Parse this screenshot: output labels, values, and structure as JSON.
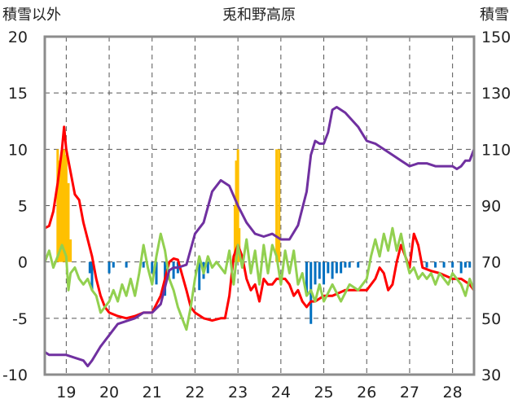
{
  "chart_data": {
    "type": "line",
    "title": "兎和野高原",
    "left_axis": {
      "label": "積雪以外",
      "ylim": [
        -10,
        20
      ],
      "ticks": [
        20,
        15,
        10,
        5,
        0,
        -5,
        -10
      ]
    },
    "right_axis": {
      "label": "積雪",
      "ylim": [
        30,
        150
      ],
      "ticks": [
        150,
        130,
        110,
        90,
        70,
        50,
        30
      ]
    },
    "x_axis": {
      "xlim": [
        18.5,
        28.5
      ],
      "ticks": [
        19,
        20,
        21,
        22,
        23,
        24,
        25,
        26,
        27,
        28
      ]
    },
    "grid": true,
    "colors": {
      "red": "#ff0000",
      "green": "#92d050",
      "purple": "#7030a0",
      "orange_bars": "#ffc000",
      "blue_bars": "#0070c0"
    },
    "series": [
      {
        "axis": "left",
        "type": "line",
        "color": "#ff0000",
        "points": [
          [
            18.5,
            3.0
          ],
          [
            18.6,
            3.2
          ],
          [
            18.7,
            4.5
          ],
          [
            18.8,
            7.0
          ],
          [
            18.9,
            10.0
          ],
          [
            18.95,
            12.0
          ],
          [
            19.0,
            10.0
          ],
          [
            19.1,
            8.0
          ],
          [
            19.2,
            6.0
          ],
          [
            19.3,
            5.5
          ],
          [
            19.4,
            3.5
          ],
          [
            19.5,
            2.0
          ],
          [
            19.6,
            0.5
          ],
          [
            19.7,
            -1.5
          ],
          [
            19.8,
            -3.0
          ],
          [
            19.9,
            -4.0
          ],
          [
            20.0,
            -4.5
          ],
          [
            20.2,
            -4.8
          ],
          [
            20.4,
            -5.0
          ],
          [
            20.6,
            -4.8
          ],
          [
            20.8,
            -4.5
          ],
          [
            21.0,
            -4.5
          ],
          [
            21.2,
            -3.0
          ],
          [
            21.3,
            -1.5
          ],
          [
            21.4,
            0.0
          ],
          [
            21.5,
            0.3
          ],
          [
            21.6,
            0.2
          ],
          [
            21.8,
            -2.5
          ],
          [
            21.9,
            -4.0
          ],
          [
            22.0,
            -4.5
          ],
          [
            22.2,
            -5.0
          ],
          [
            22.4,
            -5.2
          ],
          [
            22.6,
            -5.0
          ],
          [
            22.7,
            -5.0
          ],
          [
            22.8,
            -3.0
          ],
          [
            22.9,
            0.5
          ],
          [
            23.0,
            1.5
          ],
          [
            23.1,
            0.5
          ],
          [
            23.2,
            -1.5
          ],
          [
            23.3,
            -2.5
          ],
          [
            23.4,
            -2.0
          ],
          [
            23.5,
            -3.5
          ],
          [
            23.6,
            -1.5
          ],
          [
            23.7,
            -2.0
          ],
          [
            23.8,
            -2.0
          ],
          [
            23.9,
            -1.5
          ],
          [
            24.0,
            -1.5
          ],
          [
            24.1,
            -1.5
          ],
          [
            24.2,
            -2.0
          ],
          [
            24.3,
            -3.0
          ],
          [
            24.4,
            -2.5
          ],
          [
            24.5,
            -3.5
          ],
          [
            24.6,
            -4.0
          ],
          [
            24.7,
            -3.5
          ],
          [
            24.8,
            -3.5
          ],
          [
            25.0,
            -3.0
          ],
          [
            25.2,
            -3.0
          ],
          [
            25.5,
            -2.5
          ],
          [
            25.8,
            -2.5
          ],
          [
            26.0,
            -2.5
          ],
          [
            26.2,
            -1.5
          ],
          [
            26.3,
            -0.5
          ],
          [
            26.4,
            -1.0
          ],
          [
            26.5,
            -2.5
          ],
          [
            26.6,
            -2.0
          ],
          [
            26.7,
            0.0
          ],
          [
            26.8,
            1.5
          ],
          [
            26.9,
            0.5
          ],
          [
            27.0,
            -0.5
          ],
          [
            27.1,
            2.5
          ],
          [
            27.2,
            1.5
          ],
          [
            27.3,
            -0.5
          ],
          [
            27.5,
            -0.8
          ],
          [
            27.7,
            -1.0
          ],
          [
            28.0,
            -1.5
          ],
          [
            28.2,
            -1.5
          ],
          [
            28.4,
            -2.0
          ],
          [
            28.5,
            -2.5
          ]
        ]
      },
      {
        "axis": "left",
        "type": "line",
        "color": "#92d050",
        "points": [
          [
            18.5,
            0.0
          ],
          [
            18.6,
            1.0
          ],
          [
            18.7,
            -0.5
          ],
          [
            18.8,
            0.5
          ],
          [
            18.9,
            1.5
          ],
          [
            19.0,
            0.5
          ],
          [
            19.05,
            -2.5
          ],
          [
            19.1,
            -1.0
          ],
          [
            19.2,
            -0.5
          ],
          [
            19.3,
            -1.5
          ],
          [
            19.4,
            -2.0
          ],
          [
            19.5,
            -1.5
          ],
          [
            19.6,
            -2.5
          ],
          [
            19.7,
            -3.0
          ],
          [
            19.8,
            -4.5
          ],
          [
            19.9,
            -4.0
          ],
          [
            20.0,
            -3.5
          ],
          [
            20.1,
            -2.5
          ],
          [
            20.2,
            -3.5
          ],
          [
            20.3,
            -2.0
          ],
          [
            20.4,
            -3.0
          ],
          [
            20.5,
            -1.5
          ],
          [
            20.6,
            -3.0
          ],
          [
            20.7,
            -1.0
          ],
          [
            20.8,
            1.5
          ],
          [
            20.9,
            -0.5
          ],
          [
            21.0,
            -2.0
          ],
          [
            21.1,
            0.5
          ],
          [
            21.2,
            2.5
          ],
          [
            21.3,
            1.0
          ],
          [
            21.4,
            -1.5
          ],
          [
            21.5,
            -2.5
          ],
          [
            21.6,
            -4.0
          ],
          [
            21.7,
            -5.0
          ],
          [
            21.8,
            -6.0
          ],
          [
            21.9,
            -4.0
          ],
          [
            22.0,
            -1.5
          ],
          [
            22.1,
            0.5
          ],
          [
            22.2,
            -1.0
          ],
          [
            22.3,
            0.5
          ],
          [
            22.4,
            -0.5
          ],
          [
            22.5,
            0.0
          ],
          [
            22.6,
            -0.5
          ],
          [
            22.7,
            -1.0
          ],
          [
            22.8,
            1.0
          ],
          [
            22.9,
            -2.0
          ],
          [
            23.0,
            1.5
          ],
          [
            23.1,
            -0.5
          ],
          [
            23.2,
            2.0
          ],
          [
            23.3,
            -1.0
          ],
          [
            23.4,
            1.0
          ],
          [
            23.5,
            -2.0
          ],
          [
            23.6,
            1.5
          ],
          [
            23.7,
            -1.0
          ],
          [
            23.8,
            1.5
          ],
          [
            23.9,
            0.5
          ],
          [
            24.0,
            -2.0
          ],
          [
            24.1,
            1.0
          ],
          [
            24.2,
            -1.0
          ],
          [
            24.3,
            1.0
          ],
          [
            24.4,
            -2.0
          ],
          [
            24.5,
            -1.0
          ],
          [
            24.6,
            -3.0
          ],
          [
            24.7,
            -2.5
          ],
          [
            24.8,
            -3.5
          ],
          [
            24.9,
            -2.0
          ],
          [
            25.0,
            -3.5
          ],
          [
            25.2,
            -2.0
          ],
          [
            25.4,
            -3.5
          ],
          [
            25.6,
            -2.0
          ],
          [
            25.8,
            -2.5
          ],
          [
            26.0,
            -1.5
          ],
          [
            26.1,
            0.5
          ],
          [
            26.2,
            2.0
          ],
          [
            26.3,
            0.5
          ],
          [
            26.4,
            2.5
          ],
          [
            26.5,
            1.0
          ],
          [
            26.6,
            3.0
          ],
          [
            26.7,
            1.0
          ],
          [
            26.8,
            2.5
          ],
          [
            26.9,
            0.5
          ],
          [
            27.0,
            -1.0
          ],
          [
            27.1,
            -0.5
          ],
          [
            27.2,
            -1.5
          ],
          [
            27.3,
            -1.0
          ],
          [
            27.4,
            -1.5
          ],
          [
            27.5,
            -1.0
          ],
          [
            27.6,
            -2.0
          ],
          [
            27.7,
            -1.0
          ],
          [
            27.8,
            -1.5
          ],
          [
            27.9,
            -2.0
          ],
          [
            28.0,
            -1.0
          ],
          [
            28.1,
            -1.5
          ],
          [
            28.2,
            -2.0
          ],
          [
            28.3,
            -3.0
          ],
          [
            28.4,
            -1.5
          ],
          [
            28.5,
            -2.5
          ]
        ]
      },
      {
        "axis": "right",
        "type": "line",
        "color": "#7030a0",
        "points": [
          [
            18.5,
            38
          ],
          [
            18.6,
            37
          ],
          [
            18.8,
            37
          ],
          [
            19.0,
            37
          ],
          [
            19.2,
            36
          ],
          [
            19.4,
            35
          ],
          [
            19.5,
            33
          ],
          [
            19.6,
            35
          ],
          [
            19.8,
            40
          ],
          [
            20.0,
            44
          ],
          [
            20.2,
            48
          ],
          [
            20.4,
            49
          ],
          [
            20.6,
            50
          ],
          [
            20.8,
            52
          ],
          [
            21.0,
            52
          ],
          [
            21.2,
            55
          ],
          [
            21.4,
            67
          ],
          [
            21.5,
            68
          ],
          [
            21.6,
            68
          ],
          [
            21.8,
            69
          ],
          [
            22.0,
            80
          ],
          [
            22.2,
            84
          ],
          [
            22.4,
            95
          ],
          [
            22.6,
            99
          ],
          [
            22.8,
            97
          ],
          [
            23.0,
            90
          ],
          [
            23.2,
            84
          ],
          [
            23.4,
            80
          ],
          [
            23.6,
            79
          ],
          [
            23.8,
            80
          ],
          [
            24.0,
            78
          ],
          [
            24.2,
            78
          ],
          [
            24.4,
            83
          ],
          [
            24.6,
            95
          ],
          [
            24.7,
            108
          ],
          [
            24.8,
            113
          ],
          [
            24.9,
            112
          ],
          [
            25.0,
            112
          ],
          [
            25.1,
            116
          ],
          [
            25.2,
            124
          ],
          [
            25.3,
            125
          ],
          [
            25.5,
            123
          ],
          [
            25.8,
            118
          ],
          [
            26.0,
            113
          ],
          [
            26.2,
            112
          ],
          [
            26.4,
            110
          ],
          [
            26.6,
            108
          ],
          [
            26.8,
            106
          ],
          [
            27.0,
            104
          ],
          [
            27.2,
            105
          ],
          [
            27.4,
            105
          ],
          [
            27.6,
            104
          ],
          [
            27.8,
            104
          ],
          [
            28.0,
            104
          ],
          [
            28.1,
            103
          ],
          [
            28.2,
            104
          ],
          [
            28.3,
            106
          ],
          [
            28.4,
            106
          ],
          [
            28.5,
            110
          ]
        ]
      }
    ],
    "bars": [
      {
        "axis": "left",
        "color": "#ffc000",
        "values": [
          [
            18.8,
            10.0
          ],
          [
            18.85,
            9.0
          ],
          [
            18.9,
            10.0
          ],
          [
            18.95,
            10.0
          ],
          [
            19.0,
            9.5
          ],
          [
            19.05,
            7.0
          ],
          [
            19.1,
            2.0
          ],
          [
            22.93,
            5.0
          ],
          [
            22.96,
            9.0
          ],
          [
            23.0,
            10.0
          ],
          [
            23.03,
            3.0
          ],
          [
            23.9,
            10.0
          ],
          [
            23.93,
            2.0
          ],
          [
            23.96,
            10.0
          ]
        ]
      },
      {
        "axis": "left",
        "color": "#0070c0",
        "values": [
          [
            19.55,
            -1.0
          ],
          [
            19.6,
            -2.5
          ],
          [
            20.0,
            -1.0
          ],
          [
            20.1,
            -0.5
          ],
          [
            20.4,
            -0.5
          ],
          [
            20.8,
            -0.5
          ],
          [
            21.0,
            -1.0
          ],
          [
            21.1,
            -2.0
          ],
          [
            21.3,
            -3.0
          ],
          [
            21.5,
            -1.5
          ],
          [
            21.6,
            -1.0
          ],
          [
            22.1,
            -2.5
          ],
          [
            22.2,
            -1.5
          ],
          [
            22.3,
            -1.0
          ],
          [
            24.6,
            -3.0
          ],
          [
            24.7,
            -5.5
          ],
          [
            24.8,
            -2.0
          ],
          [
            24.9,
            -1.5
          ],
          [
            25.0,
            -2.0
          ],
          [
            25.1,
            -1.0
          ],
          [
            25.2,
            -1.5
          ],
          [
            25.3,
            -1.0
          ],
          [
            25.4,
            -1.0
          ],
          [
            25.5,
            -0.5
          ],
          [
            25.6,
            -0.5
          ],
          [
            25.8,
            -0.5
          ],
          [
            27.4,
            -0.5
          ],
          [
            27.6,
            -0.5
          ],
          [
            27.8,
            -0.5
          ],
          [
            28.0,
            -0.5
          ],
          [
            28.2,
            -1.0
          ],
          [
            28.3,
            -0.5
          ],
          [
            28.4,
            -0.5
          ],
          [
            28.5,
            -1.0
          ]
        ]
      }
    ]
  }
}
